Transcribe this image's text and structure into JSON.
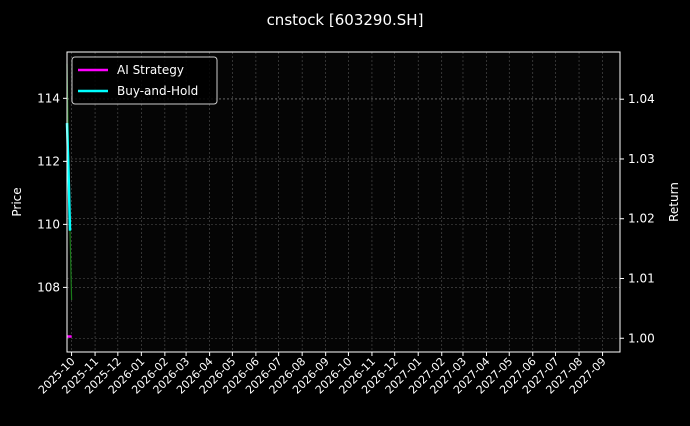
{
  "chart_data": {
    "type": "line",
    "title": "cnstock [603290.SH]",
    "ylabel_left": "Price",
    "ylabel_right": "Return",
    "xlim": [
      "2025-09-25",
      "2027-09-24"
    ],
    "ylim_left": [
      105.95,
      115.47
    ],
    "ylim_right": [
      0.9977,
      1.0479
    ],
    "grid": true,
    "legend_placement": "upper-left",
    "x_ticks": [
      "2025-10",
      "2025-11",
      "2025-12",
      "2026-01",
      "2026-02",
      "2026-03",
      "2026-04",
      "2026-05",
      "2026-06",
      "2026-07",
      "2026-08",
      "2026-09",
      "2026-10",
      "2026-11",
      "2026-12",
      "2027-01",
      "2027-02",
      "2027-03",
      "2027-04",
      "2027-05",
      "2027-06",
      "2027-07",
      "2027-08",
      "2027-09"
    ],
    "y_ticks_left": [
      108,
      110,
      112,
      114
    ],
    "y_ticks_right": [
      1.0,
      1.01,
      1.02,
      1.03,
      1.04
    ],
    "series": [
      {
        "axis": "left",
        "color": "#1a7a1a",
        "x": [
          "2025-09-25",
          "2025-09-27",
          "2025-09-29",
          "2025-10-01"
        ],
        "values": [
          115.1,
          112.2,
          109.8,
          107.6
        ]
      },
      {
        "name": "AI Strategy",
        "axis": "right",
        "color": "#ff00ff",
        "x": [
          "2025-09-25",
          "2025-10-01"
        ],
        "values": [
          1.0003,
          1.0003
        ]
      },
      {
        "name": "Buy-and-Hold",
        "axis": "right",
        "color": "#00ffff",
        "x": [
          "2025-09-25",
          "2025-09-27",
          "2025-09-29"
        ],
        "values": [
          1.036,
          1.028,
          1.018
        ]
      }
    ]
  }
}
